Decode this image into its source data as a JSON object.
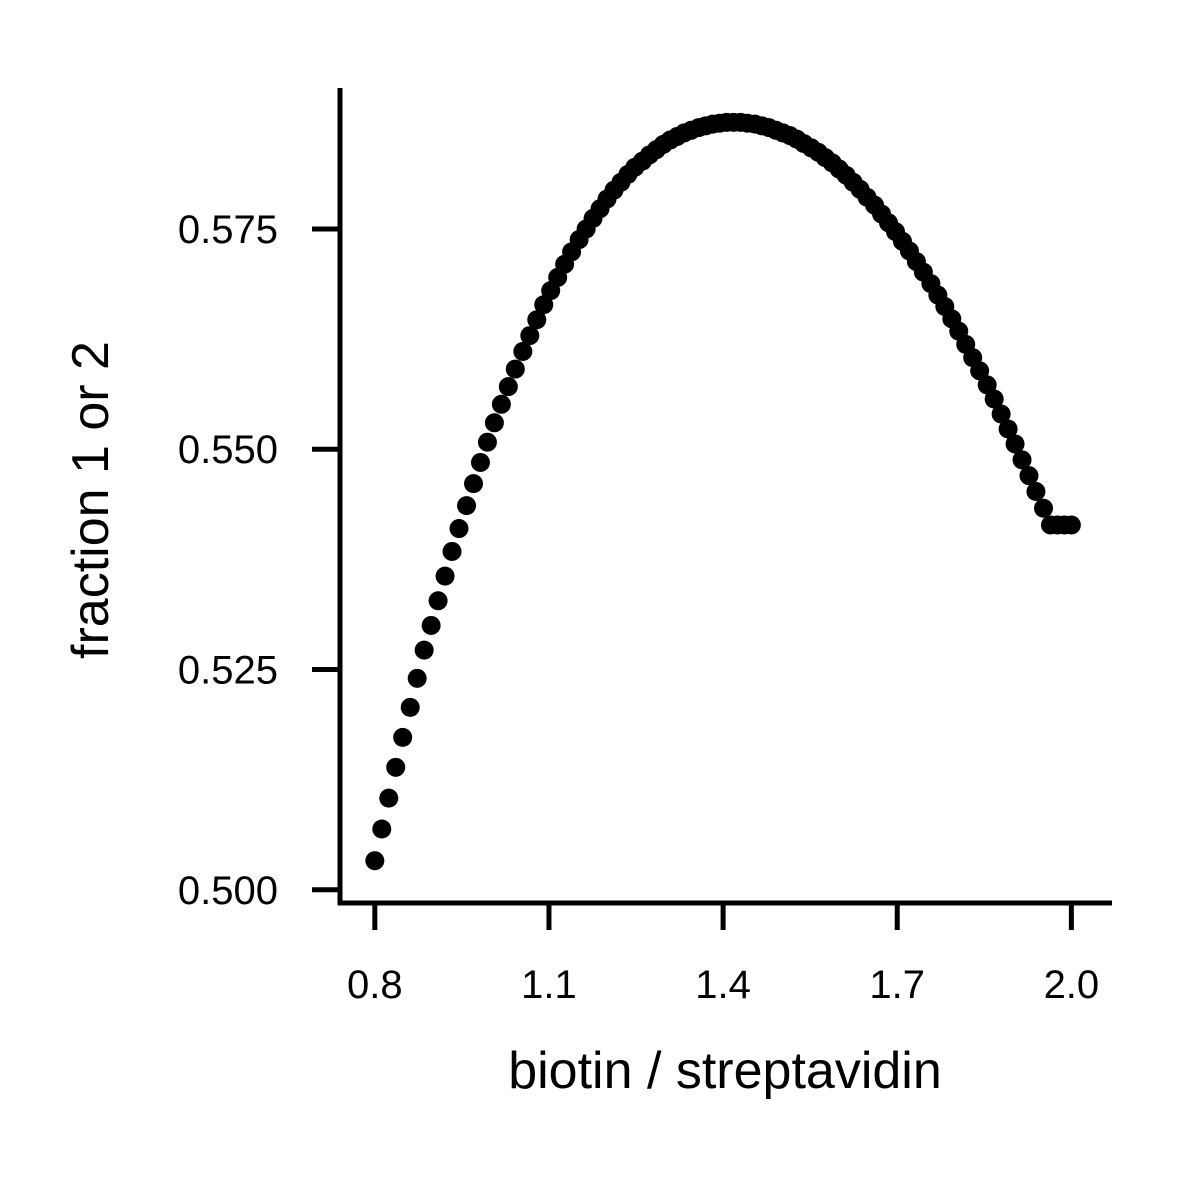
{
  "chart_data": {
    "type": "scatter",
    "title": "",
    "xlabel": "biotin / streptavidin",
    "ylabel": "fraction 1 or 2",
    "xlim": [
      0.74,
      2.07
    ],
    "ylim": [
      0.4985,
      0.591
    ],
    "xticks": [
      0.8,
      1.1,
      1.4,
      1.7,
      2.0
    ],
    "xtick_labels": [
      "0.8",
      "1.1",
      "1.4",
      "1.7",
      "2.0"
    ],
    "yticks": [
      0.5,
      0.525,
      0.55,
      0.575
    ],
    "ytick_labels": [
      "0.500",
      "0.525",
      "0.550",
      "0.575"
    ],
    "grid": false,
    "legend": false,
    "marker_color": "#000000",
    "series": [
      {
        "x": [
          0.8,
          0.812,
          0.824,
          0.836,
          0.848,
          0.861,
          0.873,
          0.885,
          0.897,
          0.909,
          0.921,
          0.933,
          0.945,
          0.958,
          0.97,
          0.982,
          0.994,
          1.006,
          1.018,
          1.03,
          1.042,
          1.055,
          1.067,
          1.079,
          1.091,
          1.103,
          1.115,
          1.127,
          1.139,
          1.152,
          1.164,
          1.176,
          1.188,
          1.2,
          1.212,
          1.224,
          1.236,
          1.248,
          1.261,
          1.273,
          1.285,
          1.297,
          1.309,
          1.321,
          1.333,
          1.345,
          1.358,
          1.37,
          1.382,
          1.394,
          1.406,
          1.418,
          1.43,
          1.442,
          1.455,
          1.467,
          1.479,
          1.491,
          1.503,
          1.515,
          1.527,
          1.539,
          1.552,
          1.564,
          1.576,
          1.588,
          1.6,
          1.612,
          1.624,
          1.636,
          1.648,
          1.661,
          1.673,
          1.685,
          1.697,
          1.709,
          1.721,
          1.733,
          1.745,
          1.758,
          1.77,
          1.782,
          1.794,
          1.806,
          1.818,
          1.83,
          1.842,
          1.855,
          1.867,
          1.879,
          1.891,
          1.903,
          1.915,
          1.927,
          1.939,
          1.952,
          1.964,
          1.976,
          1.988,
          2.0
        ],
        "y": [
          0.5033,
          0.5069,
          0.5104,
          0.5139,
          0.5173,
          0.5207,
          0.524,
          0.5272,
          0.53,
          0.5328,
          0.5356,
          0.5384,
          0.541,
          0.5436,
          0.5461,
          0.5485,
          0.5508,
          0.553,
          0.5551,
          0.5571,
          0.5591,
          0.5611,
          0.5629,
          0.5647,
          0.5664,
          0.568,
          0.5695,
          0.571,
          0.5724,
          0.5738,
          0.575,
          0.5762,
          0.5773,
          0.5784,
          0.5794,
          0.5803,
          0.5812,
          0.582,
          0.5827,
          0.5834,
          0.584,
          0.5846,
          0.5851,
          0.5855,
          0.5859,
          0.5862,
          0.5865,
          0.5867,
          0.5869,
          0.587,
          0.5871,
          0.5871,
          0.5871,
          0.587,
          0.5869,
          0.5867,
          0.5865,
          0.5862,
          0.5859,
          0.5856,
          0.5852,
          0.5847,
          0.5842,
          0.5837,
          0.5831,
          0.5825,
          0.5818,
          0.5811,
          0.5803,
          0.5795,
          0.5786,
          0.5777,
          0.5767,
          0.5757,
          0.5747,
          0.5736,
          0.5725,
          0.5713,
          0.5701,
          0.5688,
          0.5675,
          0.5662,
          0.5648,
          0.5634,
          0.5619,
          0.5604,
          0.5589,
          0.5573,
          0.5557,
          0.554,
          0.5523,
          0.5506,
          0.5488,
          0.547,
          0.5452,
          0.5433,
          0.5414,
          0.5414,
          0.5414,
          0.5414
        ]
      }
    ]
  }
}
